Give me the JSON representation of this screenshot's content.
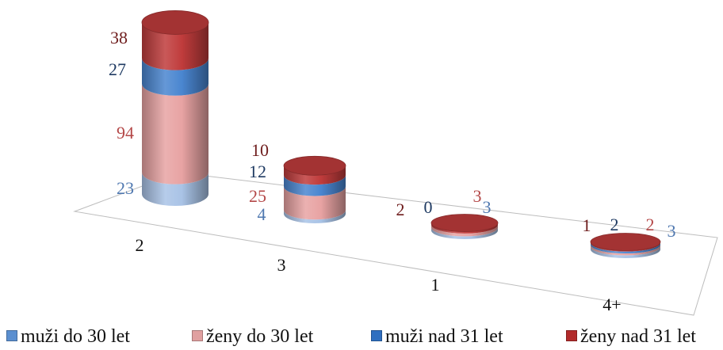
{
  "chart_data": {
    "type": "bar",
    "subtype": "3d-stacked-cylinder",
    "title": "",
    "xlabel": "",
    "ylabel": "",
    "categories": [
      "2",
      "3",
      "1",
      "4+"
    ],
    "series": [
      {
        "name": "muži do 30 let",
        "values": [
          23,
          4,
          3,
          3
        ],
        "color": "#a9c3e6",
        "label_color": "#4f78b0"
      },
      {
        "name": "ženy do 30 let",
        "values": [
          94,
          25,
          3,
          2
        ],
        "color": "#e8a3a3",
        "label_color": "#b44848"
      },
      {
        "name": "muži nad 31 let",
        "values": [
          27,
          12,
          0,
          2
        ],
        "color": "#4a86d0",
        "label_color": "#1e3a62"
      },
      {
        "name": "ženy nad 31 let",
        "values": [
          38,
          10,
          2,
          1
        ],
        "color": "#c03c3c",
        "label_color": "#6e1c1c"
      }
    ],
    "grid": false,
    "legend_position": "bottom"
  },
  "legend": {
    "items": [
      {
        "label": "muži do 30 let",
        "color": "#5b8fd0"
      },
      {
        "label": "ženy do 30 let",
        "color": "#e0a0a0"
      },
      {
        "label": "muži nad 31 let",
        "color": "#2f6fc0"
      },
      {
        "label": "ženy nad 31 let",
        "color": "#b22a2a"
      }
    ]
  }
}
